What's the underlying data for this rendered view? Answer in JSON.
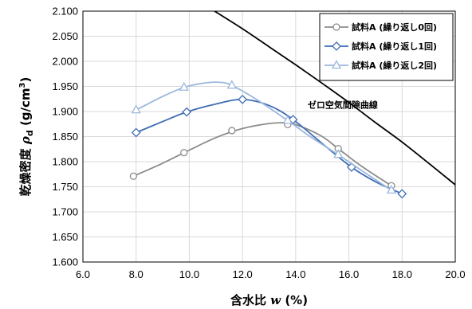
{
  "chart_data": {
    "type": "scatter",
    "xlabel": {
      "prefix": "含水比 ",
      "var": "w",
      "suffix": " (%)"
    },
    "ylabel": {
      "prefix": "乾燥密度 ",
      "var": "ρ",
      "sub": "d",
      "mid": " (g/cm",
      "sup": "3",
      "end": ")"
    },
    "xlim": [
      6.0,
      20.0
    ],
    "ylim": [
      1.6,
      2.1
    ],
    "x_ticks": [
      "6.0",
      "8.0",
      "10.0",
      "12.0",
      "14.0",
      "16.0",
      "18.0",
      "20.0"
    ],
    "y_ticks": [
      "1.600",
      "1.650",
      "1.700",
      "1.750",
      "1.800",
      "1.850",
      "1.900",
      "1.950",
      "2.000",
      "2.050",
      "2.100"
    ],
    "grid": true,
    "legend_position": "top-right",
    "series": [
      {
        "name": "試料A (繰り返し0回)",
        "marker": "circle",
        "color": "#8c8c8c",
        "points": [
          [
            7.9,
            1.771
          ],
          [
            9.8,
            1.818
          ],
          [
            11.6,
            1.862
          ],
          [
            13.7,
            1.874
          ],
          [
            15.6,
            1.826
          ],
          [
            17.6,
            1.752
          ]
        ],
        "curve": [
          [
            7.9,
            1.771
          ],
          [
            9.0,
            1.797
          ],
          [
            10.0,
            1.823
          ],
          [
            11.0,
            1.848
          ],
          [
            12.0,
            1.866
          ],
          [
            13.0,
            1.876
          ],
          [
            13.7,
            1.877
          ],
          [
            14.2,
            1.87
          ],
          [
            15.0,
            1.85
          ],
          [
            15.6,
            1.826
          ],
          [
            16.5,
            1.79
          ],
          [
            17.6,
            1.752
          ]
        ]
      },
      {
        "name": "試料A (繰り返し1回)",
        "marker": "diamond",
        "color": "#3f6db5",
        "points": [
          [
            8.0,
            1.858
          ],
          [
            9.9,
            1.899
          ],
          [
            12.0,
            1.924
          ],
          [
            13.9,
            1.884
          ],
          [
            16.1,
            1.789
          ],
          [
            18.0,
            1.736
          ]
        ],
        "curve": [
          [
            8.0,
            1.858
          ],
          [
            9.0,
            1.88
          ],
          [
            9.9,
            1.899
          ],
          [
            11.0,
            1.915
          ],
          [
            12.0,
            1.924
          ],
          [
            13.0,
            1.912
          ],
          [
            13.9,
            1.884
          ],
          [
            15.0,
            1.836
          ],
          [
            16.1,
            1.789
          ],
          [
            17.0,
            1.76
          ],
          [
            18.0,
            1.736
          ]
        ]
      },
      {
        "name": "試料A (繰り返し2回)",
        "marker": "triangle",
        "color": "#9bb7dc",
        "points": [
          [
            8.0,
            1.903
          ],
          [
            9.8,
            1.948
          ],
          [
            11.6,
            1.952
          ],
          [
            13.7,
            1.882
          ],
          [
            15.6,
            1.814
          ],
          [
            17.6,
            1.743
          ]
        ],
        "curve": [
          [
            8.0,
            1.903
          ],
          [
            9.0,
            1.93
          ],
          [
            9.8,
            1.948
          ],
          [
            10.6,
            1.957
          ],
          [
            11.2,
            1.958
          ],
          [
            11.6,
            1.952
          ],
          [
            12.5,
            1.925
          ],
          [
            13.7,
            1.882
          ],
          [
            14.6,
            1.848
          ],
          [
            15.6,
            1.814
          ],
          [
            16.6,
            1.778
          ],
          [
            17.6,
            1.743
          ]
        ]
      }
    ],
    "zero_air_void_curve": {
      "label": "ゼロ空気間隙曲線",
      "color": "#000000",
      "points": [
        [
          10.95,
          2.1
        ],
        [
          12.0,
          2.065
        ],
        [
          13.0,
          2.029
        ],
        [
          14.0,
          1.993
        ],
        [
          15.0,
          1.956
        ],
        [
          16.0,
          1.918
        ],
        [
          17.0,
          1.878
        ],
        [
          18.0,
          1.839
        ],
        [
          19.0,
          1.797
        ],
        [
          20.0,
          1.754
        ]
      ]
    }
  }
}
